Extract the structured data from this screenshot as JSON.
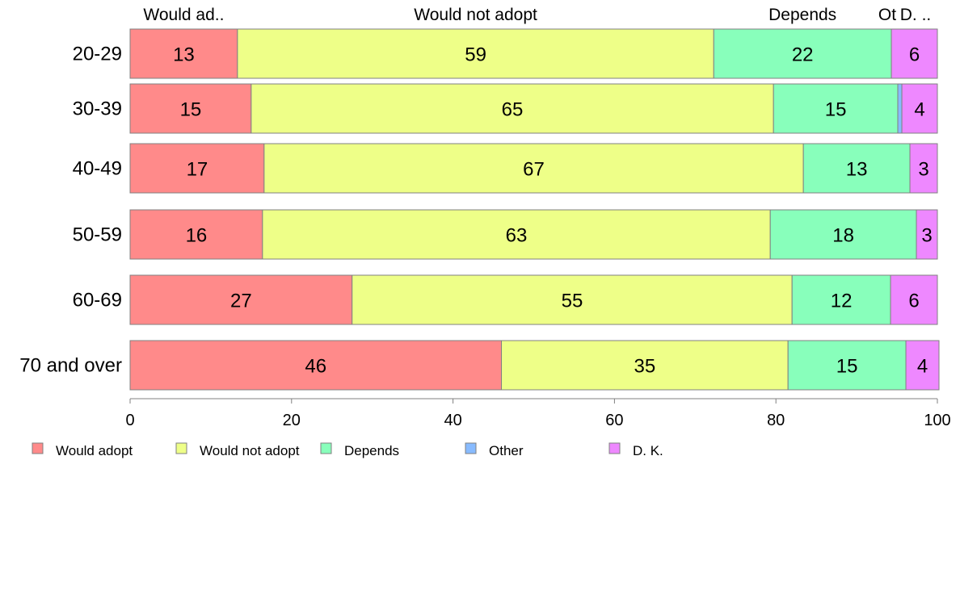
{
  "chart_data": {
    "type": "bar",
    "orientation": "horizontal",
    "stacked": true,
    "categories": [
      "20-29",
      "30-39",
      "40-49",
      "50-59",
      "60-69",
      "70 and over"
    ],
    "series": [
      {
        "name": "Would adopt",
        "color": "#FF8A8A",
        "values": [
          13.3,
          15,
          16.6,
          16.4,
          27.5,
          46.0
        ]
      },
      {
        "name": "Would not adopt",
        "color": "#EEFF88",
        "values": [
          59.0,
          64.7,
          66.8,
          62.9,
          54.5,
          35.5
        ]
      },
      {
        "name": "Depends",
        "color": "#88FFBB",
        "values": [
          22.0,
          15.4,
          13.2,
          18.1,
          12.2,
          14.6
        ]
      },
      {
        "name": "Other",
        "color": "#88BBFF",
        "values": [
          0,
          0.5,
          0,
          0,
          0,
          0
        ]
      },
      {
        "name": "D. K.",
        "color": "#EE88FF",
        "values": [
          5.7,
          4.4,
          3.4,
          2.6,
          5.8,
          4.1
        ]
      }
    ],
    "data_labels": [
      [
        "13",
        "59",
        "22",
        "",
        "6"
      ],
      [
        "15",
        "65",
        "15",
        "",
        "4"
      ],
      [
        "17",
        "67",
        "13",
        "",
        "3"
      ],
      [
        "16",
        "63",
        "18",
        "",
        "3"
      ],
      [
        "27",
        "55",
        "12",
        "",
        "6"
      ],
      [
        "46",
        "35",
        "15",
        "",
        "4"
      ]
    ],
    "top_labels": [
      "Would ad..",
      "Would not adopt",
      "Depends",
      "Ot",
      "D. .."
    ],
    "xlim": [
      0,
      100
    ],
    "xticks": [
      0,
      20,
      40,
      60,
      80,
      100
    ],
    "legend_position": "bottom-left",
    "grid": false
  }
}
